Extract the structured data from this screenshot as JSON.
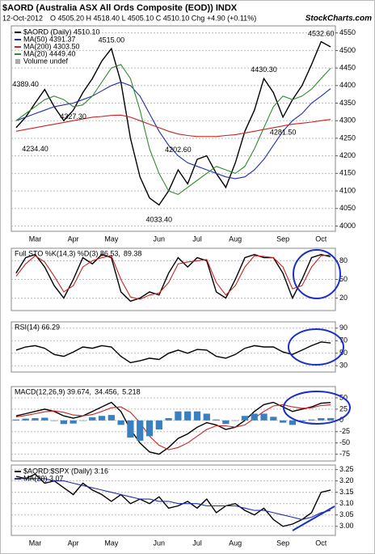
{
  "logo": "StockCharts.com",
  "chart_data": [
    {
      "type": "line",
      "title": "$AORD (Australia ASX All Ords Composite (EOD)) INDX",
      "date": "12-Oct-2012",
      "quote": "O 4505.20  H 4518.40  L 4505.10  C 4510.10  Chg +4.90 (+0.11%)",
      "legend_layout": "stacked",
      "legend_note": "Volume undef",
      "grid": true,
      "categories": [
        null,
        null,
        "Mar",
        null,
        null,
        null,
        "Apr",
        null,
        null,
        null,
        "May",
        null,
        null,
        null,
        null,
        "Jun",
        null,
        null,
        null,
        "Jul",
        null,
        null,
        null,
        "Aug",
        null,
        null,
        null,
        null,
        "Sep",
        null,
        null,
        null,
        "Oct",
        null
      ],
      "ylim": [
        3985,
        4570
      ],
      "yticks": [
        4000,
        4050,
        4100,
        4150,
        4200,
        4250,
        4300,
        4350,
        4400,
        4450,
        4500,
        4550
      ],
      "series": [
        {
          "name": "$AORD (Daily) 4510.10",
          "color": "#000000",
          "values": [
            4280,
            4310,
            4350,
            4389,
            4340,
            4300,
            4330,
            4380,
            4420,
            4470,
            4505,
            4410,
            4250,
            4140,
            4080,
            4060,
            4100,
            4160,
            4120,
            4190,
            4200,
            4150,
            4110,
            4180,
            4270,
            4330,
            4420,
            4380,
            4310,
            4360,
            4400,
            4460,
            4525,
            4510.1
          ]
        },
        {
          "name": "MA(50) 4391.37",
          "color": "#1f2fa8",
          "values": [
            4300,
            4310,
            4320,
            4330,
            4340,
            4345,
            4350,
            4360,
            4370,
            4385,
            4400,
            4410,
            4400,
            4370,
            4320,
            4270,
            4230,
            4200,
            4180,
            4170,
            4160,
            4150,
            4140,
            4135,
            4140,
            4160,
            4190,
            4230,
            4270,
            4300,
            4320,
            4350,
            4370,
            4391.37
          ]
        },
        {
          "name": "MA(200) 4303.50",
          "color": "#cc2222",
          "values": [
            4270,
            4275,
            4280,
            4285,
            4290,
            4295,
            4300,
            4305,
            4310,
            4312,
            4315,
            4316,
            4310,
            4300,
            4290,
            4280,
            4270,
            4262,
            4258,
            4255,
            4255,
            4255,
            4258,
            4260,
            4265,
            4270,
            4275,
            4280,
            4285,
            4290,
            4293,
            4296,
            4300,
            4303.5
          ]
        },
        {
          "name": "MA(20) 4449.40",
          "color": "#2e8b2e",
          "values": [
            4300,
            4320,
            4340,
            4360,
            4370,
            4360,
            4340,
            4345,
            4370,
            4410,
            4450,
            4460,
            4420,
            4330,
            4220,
            4150,
            4100,
            4090,
            4110,
            4130,
            4150,
            4170,
            4160,
            4150,
            4170,
            4220,
            4280,
            4340,
            4370,
            4360,
            4370,
            4390,
            4420,
            4449.4
          ]
        }
      ],
      "annotations": [
        {
          "label": "4389.40",
          "value": 4389.4,
          "x": 1
        },
        {
          "label": "4234.40",
          "value": 4234.4,
          "x": 2
        },
        {
          "label": "4327.30",
          "value": 4327.3,
          "x": 6
        },
        {
          "label": "4515.00",
          "value": 4515,
          "x": 10
        },
        {
          "label": "4033.40",
          "value": 4033.4,
          "x": 15
        },
        {
          "label": "4202.60",
          "value": 4202.6,
          "x": 17
        },
        {
          "label": "4430.30",
          "value": 4430.3,
          "x": 26
        },
        {
          "label": "4281.50",
          "value": 4281.5,
          "x": 28
        },
        {
          "label": "4532.60",
          "value": 4532.6,
          "x": 32
        }
      ]
    },
    {
      "type": "line",
      "legend_layout": "inline",
      "grid": true,
      "ylim": [
        0,
        100
      ],
      "yticks": [
        20,
        50,
        80
      ],
      "series": [
        {
          "name": "Full STO %K(14,3) %D(3) 86.53,",
          "color": "#000000",
          "values": [
            60,
            85,
            90,
            70,
            40,
            20,
            50,
            85,
            75,
            90,
            85,
            30,
            15,
            20,
            30,
            25,
            60,
            85,
            70,
            85,
            80,
            30,
            20,
            50,
            85,
            90,
            85,
            85,
            60,
            20,
            50,
            85,
            90,
            86.53
          ]
        },
        {
          "name": "89.38",
          "color": "#cc2222",
          "values": [
            55,
            75,
            88,
            78,
            55,
            30,
            40,
            70,
            80,
            85,
            88,
            50,
            22,
            18,
            25,
            28,
            45,
            75,
            78,
            80,
            82,
            45,
            25,
            40,
            70,
            88,
            87,
            85,
            70,
            35,
            40,
            70,
            88,
            89.38
          ]
        }
      ]
    },
    {
      "type": "line",
      "legend_layout": "inline",
      "grid": true,
      "ylim": [
        20,
        100
      ],
      "yticks": [
        30,
        50,
        70,
        90
      ],
      "series": [
        {
          "name": "RSI(14) 66.29",
          "color": "#000000",
          "values": [
            55,
            60,
            62,
            58,
            48,
            45,
            52,
            60,
            58,
            62,
            60,
            45,
            35,
            38,
            42,
            40,
            50,
            55,
            50,
            56,
            55,
            45,
            42,
            48,
            58,
            62,
            60,
            60,
            52,
            48,
            55,
            62,
            68,
            66.29
          ]
        }
      ]
    },
    {
      "type": "line",
      "legend_layout": "inline",
      "grid": true,
      "ylim": [
        -90,
        75
      ],
      "yticks": [
        -75,
        -50,
        -25,
        0,
        25,
        50
      ],
      "series": [
        {
          "name": "MACD(12,26,9) 39.674,",
          "color": "#000000",
          "values": [
            10,
            15,
            20,
            25,
            20,
            10,
            5,
            10,
            20,
            30,
            40,
            20,
            -20,
            -50,
            -70,
            -75,
            -60,
            -40,
            -30,
            -15,
            -5,
            -10,
            -20,
            -15,
            0,
            20,
            35,
            40,
            30,
            20,
            25,
            30,
            38,
            39.674
          ]
        },
        {
          "name": "34.456,",
          "color": "#cc2222",
          "values": [
            8,
            11,
            15,
            19,
            21,
            18,
            12,
            10,
            13,
            20,
            28,
            30,
            18,
            -5,
            -35,
            -55,
            -65,
            -60,
            -50,
            -35,
            -20,
            -12,
            -12,
            -15,
            -10,
            5,
            20,
            32,
            35,
            30,
            27,
            28,
            33,
            34.456
          ]
        },
        {
          "name": "5.218",
          "color": "#3a7fc0",
          "kind": "bar",
          "values": [
            2,
            4,
            5,
            6,
            -1,
            -8,
            -7,
            0,
            7,
            10,
            12,
            -10,
            -38,
            -45,
            -35,
            -20,
            5,
            20,
            20,
            20,
            15,
            2,
            -8,
            0,
            10,
            15,
            15,
            8,
            -5,
            -10,
            -2,
            2,
            5,
            5.218
          ]
        }
      ]
    },
    {
      "type": "line",
      "legend_layout": "stacked",
      "grid": true,
      "categories": [
        null,
        null,
        "Mar",
        null,
        null,
        null,
        "Apr",
        null,
        null,
        null,
        "May",
        null,
        null,
        null,
        null,
        "Jun",
        null,
        null,
        null,
        "Jul",
        null,
        null,
        null,
        "Aug",
        null,
        null,
        null,
        null,
        "Sep",
        null,
        null,
        null,
        "Oct",
        null
      ],
      "ylim": [
        2.96,
        3.27
      ],
      "yticks": [
        {
          "value": 3,
          "label": "3.00"
        },
        3.05,
        {
          "value": 3.1,
          "label": "3.10"
        },
        3.15,
        {
          "value": 3.2,
          "label": "3.20"
        },
        3.25
      ],
      "series": [
        {
          "name": "$AORD:$SPX (Daily) 3.16",
          "color": "#000000",
          "values": [
            3.22,
            3.21,
            3.23,
            3.19,
            3.2,
            3.17,
            3.14,
            3.19,
            3.16,
            3.14,
            3.11,
            3.14,
            3.1,
            3.12,
            3.1,
            3.13,
            3.08,
            3.09,
            3.11,
            3.08,
            3.12,
            3.06,
            3.09,
            3.1,
            3.07,
            3.05,
            3.08,
            3.03,
            3,
            3.01,
            3.03,
            3.06,
            3.15,
            3.16
          ]
        },
        {
          "name": "MA(20) 3.07",
          "color": "#1f2fa8",
          "values": [
            3.21,
            3.21,
            3.21,
            3.21,
            3.2,
            3.2,
            3.19,
            3.18,
            3.17,
            3.16,
            3.15,
            3.14,
            3.13,
            3.12,
            3.12,
            3.11,
            3.11,
            3.1,
            3.1,
            3.1,
            3.09,
            3.09,
            3.09,
            3.09,
            3.08,
            3.07,
            3.07,
            3.06,
            3.05,
            3.04,
            3.03,
            3.04,
            3.06,
            3.07
          ]
        }
      ]
    }
  ]
}
